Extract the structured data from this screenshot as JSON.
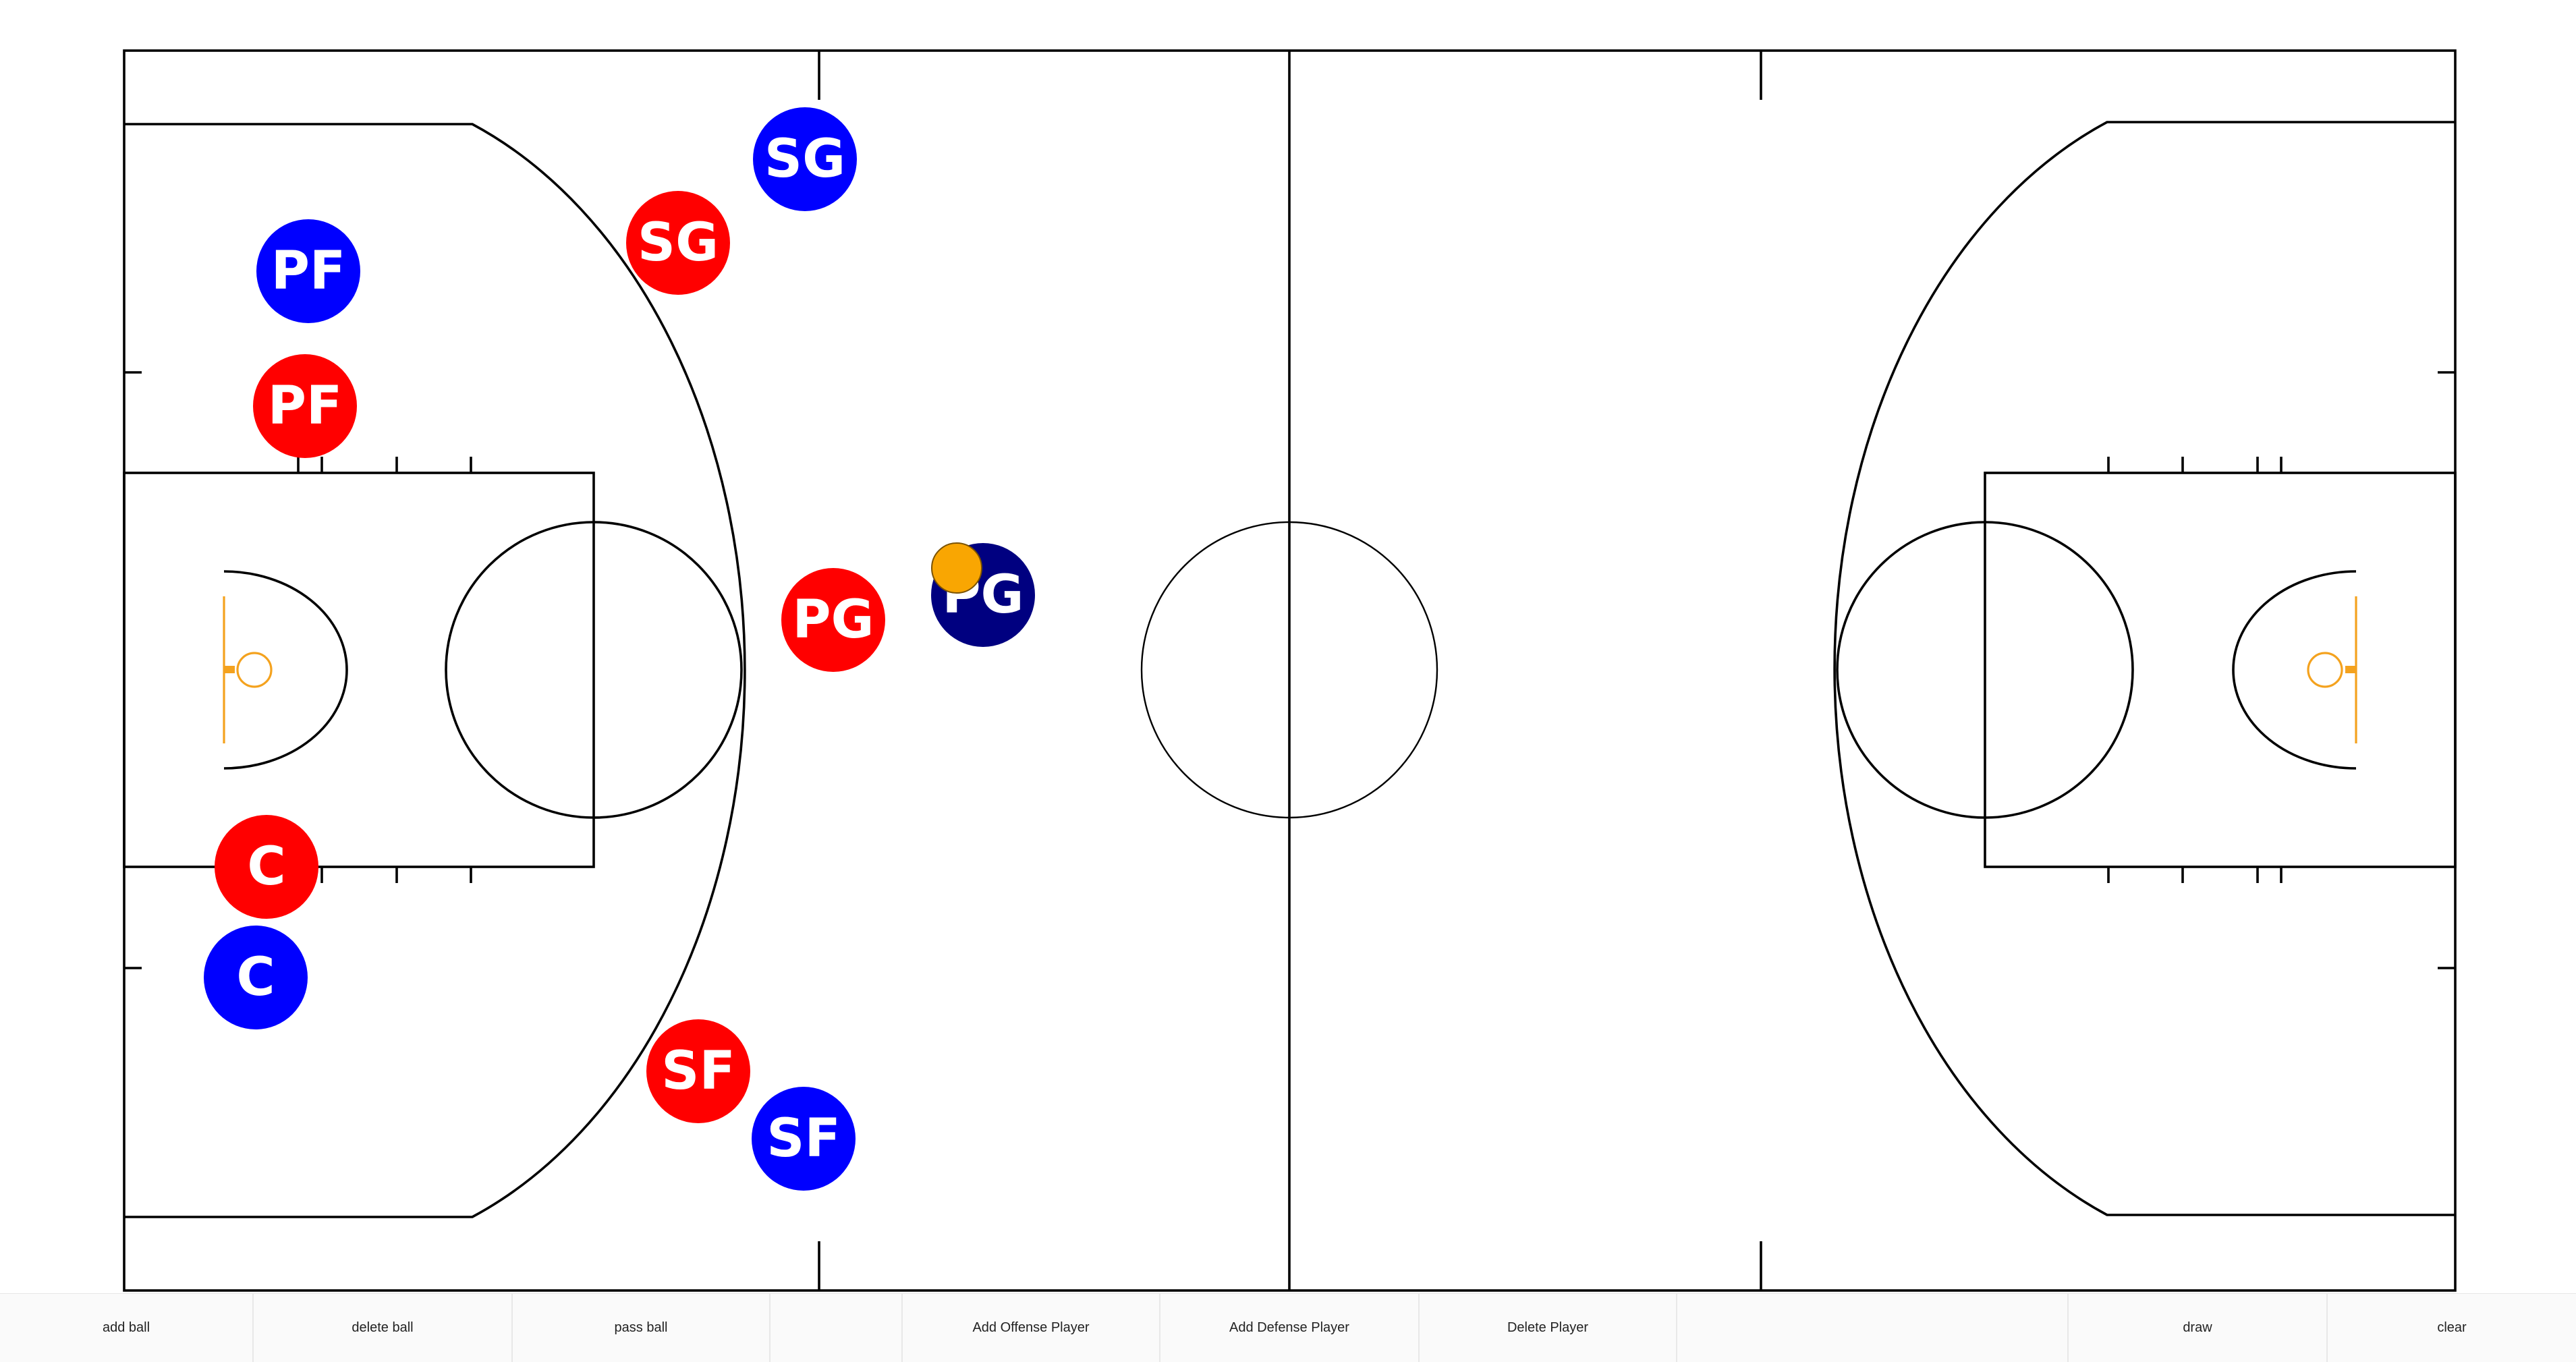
{
  "colors": {
    "offense": "#ff0000",
    "defense_blue": "#0000ff",
    "defense_selected": "#000080",
    "ball": "#f9a602",
    "hoop": "#f4a21e",
    "court_lines": "#000000"
  },
  "players": {
    "defense_sg": {
      "label": "SG",
      "team": "defense"
    },
    "offense_sg": {
      "label": "SG",
      "team": "offense"
    },
    "defense_pf": {
      "label": "PF",
      "team": "defense"
    },
    "offense_pf": {
      "label": "PF",
      "team": "offense"
    },
    "offense_pg": {
      "label": "PG",
      "team": "offense"
    },
    "defense_pg": {
      "label": "PG",
      "team": "defense",
      "selected": true
    },
    "offense_c": {
      "label": "C",
      "team": "offense"
    },
    "defense_c": {
      "label": "C",
      "team": "defense"
    },
    "offense_sf": {
      "label": "SF",
      "team": "offense"
    },
    "defense_sf": {
      "label": "SF",
      "team": "defense"
    }
  },
  "ball": {
    "icon": "basketball-icon"
  },
  "toolbar": {
    "add_ball": "add ball",
    "delete_ball": "delete ball",
    "pass_ball": "pass ball",
    "add_offense_player": "Add Offense Player",
    "add_defense_player": "Add Defense Player",
    "delete_player": "Delete Player",
    "draw": "draw",
    "clear": "clear"
  }
}
